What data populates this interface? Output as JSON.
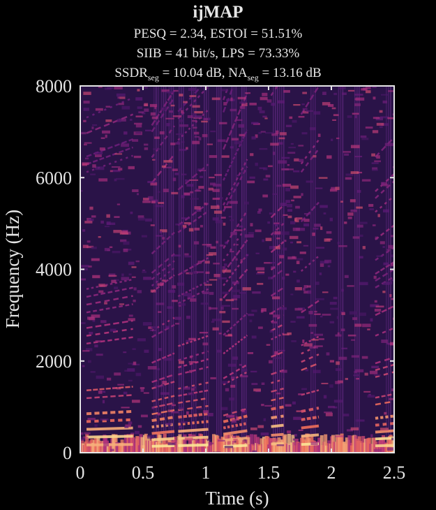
{
  "chart_data": {
    "type": "heatmap",
    "title": "ijMAP",
    "metrics": {
      "line1": "PESQ = 2.34, ESTOI = 51.51%",
      "line2": "SIIB = 41 bit/s, LPS = 73.33%",
      "line3_a": "SSDR",
      "line3_a_sub": "seg",
      "line3_b": " = 10.04 dB, NA",
      "line3_b_sub": "seg",
      "line3_c": " = 13.16 dB"
    },
    "xlabel": "Time (s)",
    "ylabel": "Frequency (Hz)",
    "xlim": [
      0,
      2.5
    ],
    "ylim": [
      0,
      8000
    ],
    "xticks": [
      0,
      0.5,
      1,
      1.5,
      2,
      2.5
    ],
    "xtick_labels": [
      "0",
      "0.5",
      "1",
      "1.5",
      "2",
      "2.5"
    ],
    "yticks": [
      0,
      2000,
      4000,
      6000,
      8000
    ],
    "ytick_labels": [
      "0",
      "2000",
      "4000",
      "6000",
      "8000"
    ],
    "colormap": "magma",
    "colors": {
      "background": "#000000",
      "plot_bg": "#2a1348",
      "axis": "#e6e6e6"
    },
    "harmonic_segments": [
      {
        "t0": 0.05,
        "t1": 0.42,
        "f0": 170,
        "f1": 180
      },
      {
        "t0": 0.57,
        "t1": 0.75,
        "f0": 140,
        "f1": 155
      },
      {
        "t0": 0.78,
        "t1": 1.02,
        "f0": 155,
        "f1": 170
      },
      {
        "t0": 1.14,
        "t1": 1.33,
        "f0": 135,
        "f1": 160
      },
      {
        "t0": 1.52,
        "t1": 1.62,
        "f0": 190,
        "f1": 200
      },
      {
        "t0": 1.76,
        "t1": 1.9,
        "f0": 180,
        "f1": 195
      },
      {
        "t0": 2.35,
        "t1": 2.5,
        "f0": 150,
        "f1": 160
      }
    ],
    "vertical_bursts": [
      0.6,
      0.66,
      0.72,
      0.8,
      0.9,
      1.0,
      1.1,
      1.22,
      1.3,
      1.55,
      1.6,
      1.85,
      2.07,
      2.2,
      2.45
    ]
  }
}
